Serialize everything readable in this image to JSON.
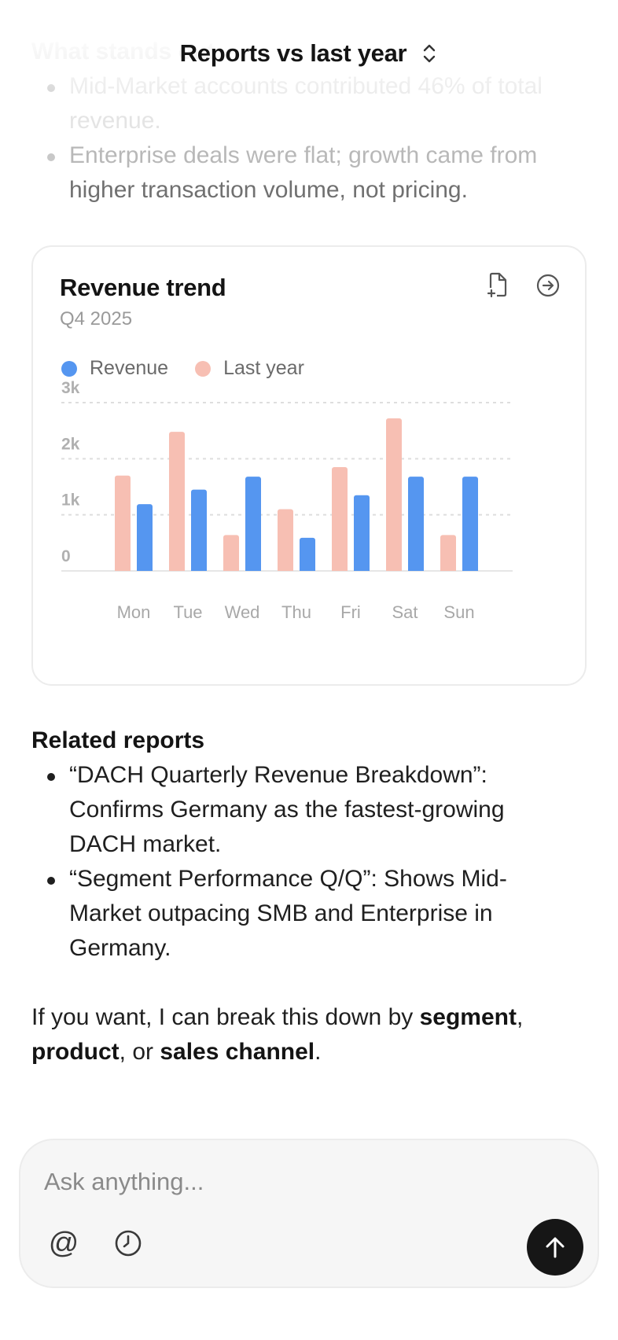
{
  "header": {
    "title": "Reports vs last year"
  },
  "faded_text": {
    "heading": "What stands out",
    "bullets": [
      "Mid-Market accounts contributed 46% of total",
      "revenue.",
      "Enterprise deals were flat; growth came from",
      "higher transaction volume, not pricing."
    ]
  },
  "card": {
    "title": "Revenue trend",
    "subtitle": "Q4 2025",
    "actions": [
      "add-file-icon",
      "arrow-right-circle-icon"
    ]
  },
  "chart_data": {
    "type": "bar",
    "title": "Revenue trend",
    "subtitle": "Q4 2025",
    "categories": [
      "Mon",
      "Tue",
      "Wed",
      "Thu",
      "Fri",
      "Sat",
      "Sun"
    ],
    "series": [
      {
        "name": "Last year",
        "color": "#f7bfb3",
        "values": [
          1700,
          2480,
          640,
          1100,
          1850,
          2720,
          640
        ]
      },
      {
        "name": "Revenue",
        "color": "#5596f0",
        "values": [
          1190,
          1450,
          1680,
          590,
          1350,
          1680,
          1680
        ]
      }
    ],
    "yticks": [
      "0",
      "1k",
      "2k",
      "3k"
    ],
    "ylim": [
      0,
      3000
    ],
    "grid": true,
    "legend": "top-left"
  },
  "related": {
    "heading": "Related reports",
    "items": [
      [
        "“DACH Quarterly Revenue Breakdown”:",
        "Confirms Germany as the fastest-growing",
        "DACH market."
      ],
      [
        "“Segment Performance Q/Q”: Shows Mid-",
        "Market outpacing SMB and Enterprise in",
        "Germany."
      ]
    ]
  },
  "followup": {
    "prefix": "If you want, I can break this down by ",
    "opt1": "segment",
    "sep1": ",",
    "opt2": "product",
    "sep2": ", or ",
    "opt3": "sales channel",
    "suffix": "."
  },
  "composer": {
    "placeholder": "Ask anything...",
    "value": "",
    "mention_symbol": "@"
  },
  "colors": {
    "revenue": "#5596f0",
    "last_year": "#f7bfb3",
    "send": "#161616"
  }
}
